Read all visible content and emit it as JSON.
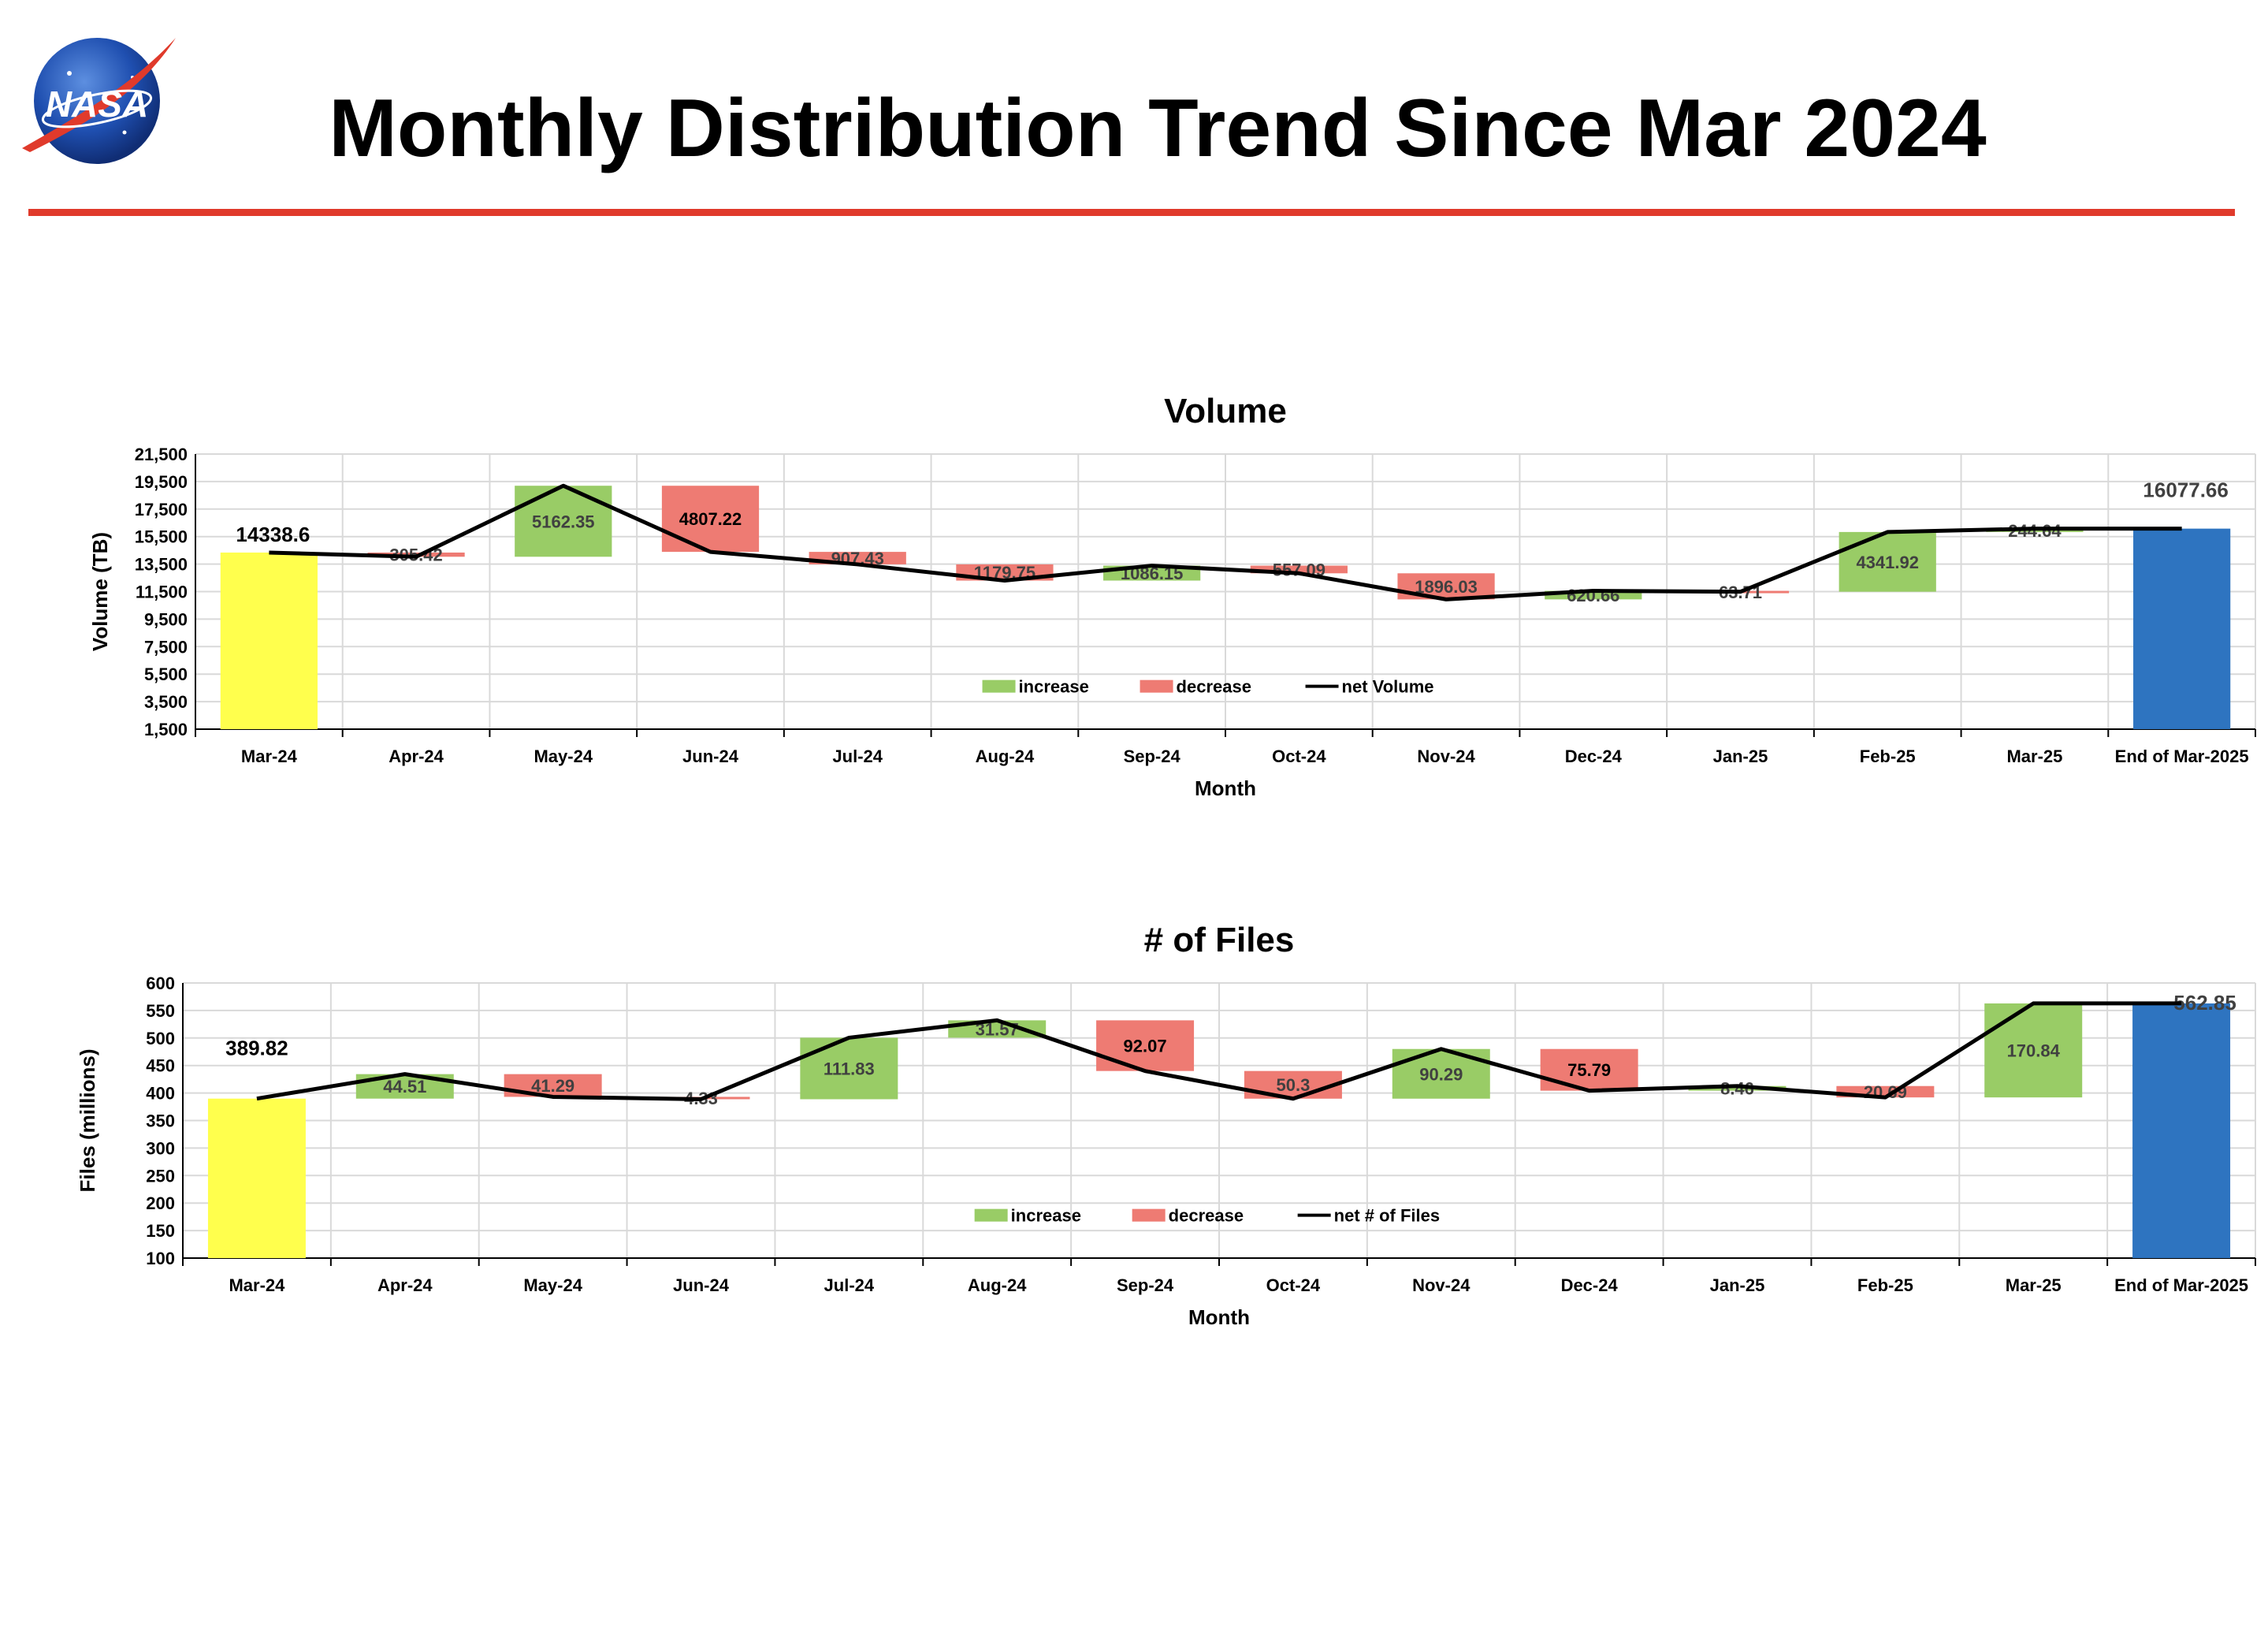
{
  "page": {
    "title": "Monthly Distribution Trend Since Mar 2024",
    "logo_text": "NASA"
  },
  "colors": {
    "increase": "#99cc66",
    "decrease": "#ee7b73",
    "start": "#ffff4d",
    "end": "#2e74c0",
    "line": "#000000",
    "title_rule": "#e03a2b"
  },
  "chart_data": [
    {
      "type": "waterfall",
      "title": "Volume",
      "xlabel": "Month",
      "ylabel": "Volume (TB)",
      "ylim": [
        1500,
        21500
      ],
      "yticks": [
        "1,500",
        "3,500",
        "5,500",
        "7,500",
        "9,500",
        "11,500",
        "13,500",
        "15,500",
        "17,500",
        "19,500",
        "21,500"
      ],
      "ytick_values": [
        1500,
        3500,
        5500,
        7500,
        9500,
        11500,
        13500,
        15500,
        17500,
        19500,
        21500
      ],
      "categories": [
        "Mar-24",
        "Apr-24",
        "May-24",
        "Jun-24",
        "Jul-24",
        "Aug-24",
        "Sep-24",
        "Oct-24",
        "Nov-24",
        "Dec-24",
        "Jan-25",
        "Feb-25",
        "Mar-25",
        "End of Mar-2025"
      ],
      "start": {
        "category": "Mar-24",
        "value": 14338.6,
        "label": "14338.6"
      },
      "end": {
        "category": "End of Mar-2025",
        "value": 16077.66,
        "label": "16077.66"
      },
      "changes": [
        {
          "category": "Apr-24",
          "direction": "decrease",
          "value": 305.42,
          "label": "305.42"
        },
        {
          "category": "May-24",
          "direction": "increase",
          "value": 5162.35,
          "label": "5162.35"
        },
        {
          "category": "Jun-24",
          "direction": "decrease",
          "value": 4807.22,
          "label": "4807.22"
        },
        {
          "category": "Jul-24",
          "direction": "decrease",
          "value": 907.43,
          "label": "907.43"
        },
        {
          "category": "Aug-24",
          "direction": "decrease",
          "value": 1179.75,
          "label": "1179.75"
        },
        {
          "category": "Sep-24",
          "direction": "increase",
          "value": 1086.15,
          "label": "1086.15"
        },
        {
          "category": "Oct-24",
          "direction": "decrease",
          "value": 557.09,
          "label": "557.09"
        },
        {
          "category": "Nov-24",
          "direction": "decrease",
          "value": 1896.03,
          "label": "1896.03"
        },
        {
          "category": "Dec-24",
          "direction": "increase",
          "value": 620.66,
          "label": "620.66"
        },
        {
          "category": "Jan-25",
          "direction": "decrease",
          "value": 63.71,
          "label": "63.71"
        },
        {
          "category": "Feb-25",
          "direction": "increase",
          "value": 4341.92,
          "label": "4341.92"
        },
        {
          "category": "Mar-25",
          "direction": "increase",
          "value": 244.64,
          "label": "244.64"
        }
      ],
      "net_series_name": "net Volume",
      "net_values": [
        14338.6,
        14033.18,
        19195.53,
        14388.31,
        13480.88,
        12301.13,
        13387.28,
        12830.19,
        10934.16,
        11554.82,
        11491.11,
        15833.03,
        16077.67,
        16077.66
      ],
      "legend": {
        "position": "inside-bottom-center",
        "entries": [
          "increase",
          "decrease",
          "net Volume"
        ]
      },
      "grid": true
    },
    {
      "type": "waterfall",
      "title": "# of Files",
      "xlabel": "Month",
      "ylabel": "Files (millions)",
      "ylim": [
        100,
        600
      ],
      "yticks": [
        "100",
        "150",
        "200",
        "250",
        "300",
        "350",
        "400",
        "450",
        "500",
        "550",
        "600"
      ],
      "ytick_values": [
        100,
        150,
        200,
        250,
        300,
        350,
        400,
        450,
        500,
        550,
        600
      ],
      "categories": [
        "Mar-24",
        "Apr-24",
        "May-24",
        "Jun-24",
        "Jul-24",
        "Aug-24",
        "Sep-24",
        "Oct-24",
        "Nov-24",
        "Dec-24",
        "Jan-25",
        "Feb-25",
        "Mar-25",
        "End of Mar-2025"
      ],
      "start": {
        "category": "Mar-24",
        "value": 389.82,
        "label": "389.82"
      },
      "end": {
        "category": "End of Mar-2025",
        "value": 562.85,
        "label": "562.85"
      },
      "changes": [
        {
          "category": "Apr-24",
          "direction": "increase",
          "value": 44.51,
          "label": "44.51"
        },
        {
          "category": "May-24",
          "direction": "decrease",
          "value": 41.29,
          "label": "41.29"
        },
        {
          "category": "Jun-24",
          "direction": "decrease",
          "value": 4.33,
          "label": "4.33"
        },
        {
          "category": "Jul-24",
          "direction": "increase",
          "value": 111.83,
          "label": "111.83"
        },
        {
          "category": "Aug-24",
          "direction": "increase",
          "value": 31.57,
          "label": "31.57"
        },
        {
          "category": "Sep-24",
          "direction": "decrease",
          "value": 92.07,
          "label": "92.07"
        },
        {
          "category": "Oct-24",
          "direction": "decrease",
          "value": 50.3,
          "label": "50.3"
        },
        {
          "category": "Nov-24",
          "direction": "increase",
          "value": 90.29,
          "label": "90.29"
        },
        {
          "category": "Dec-24",
          "direction": "decrease",
          "value": 75.79,
          "label": "75.79"
        },
        {
          "category": "Jan-25",
          "direction": "increase",
          "value": 8.46,
          "label": "8.46"
        },
        {
          "category": "Feb-25",
          "direction": "decrease",
          "value": 20.69,
          "label": "20.69"
        },
        {
          "category": "Mar-25",
          "direction": "increase",
          "value": 170.84,
          "label": "170.84"
        }
      ],
      "net_series_name": "net # of Files",
      "net_values": [
        389.82,
        434.33,
        393.04,
        388.71,
        500.54,
        532.11,
        440.04,
        389.74,
        480.03,
        404.24,
        412.7,
        392.01,
        562.85,
        562.85
      ],
      "legend": {
        "position": "inside-bottom-center",
        "entries": [
          "increase",
          "decrease",
          "net # of Files"
        ]
      },
      "grid": true
    }
  ]
}
